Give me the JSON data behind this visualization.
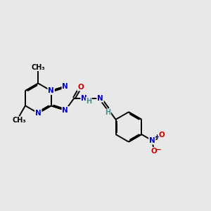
{
  "background_color": "#e8e8e8",
  "figure_size": [
    3.0,
    3.0
  ],
  "dpi": 100,
  "atom_colors": {
    "N": "#0000cc",
    "O": "#cc0000",
    "C": "#000000",
    "H": "#4a9090"
  },
  "bond_color": "#000000",
  "bond_width": 1.4,
  "font_size": 7.5
}
